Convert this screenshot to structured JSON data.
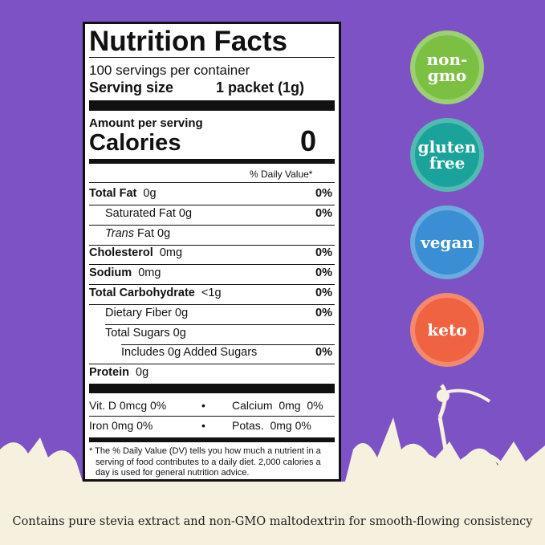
{
  "label": {
    "title": "Nutrition Facts",
    "servings": "100 servings per container",
    "serving_size_label": "Serving size",
    "serving_size_value": "1 packet (1g)",
    "amount_per_serving": "Amount per serving",
    "calories_label": "Calories",
    "calories_value": "0",
    "daily_value_header": "% Daily Value*",
    "rows": [
      {
        "name": "Total Fat",
        "amount": "0g",
        "dv": "0%"
      },
      {
        "name": "Saturated Fat 0g",
        "dv": "0%"
      },
      {
        "name_prefix": "Trans",
        "name": "Fat 0g"
      },
      {
        "name": "Cholesterol",
        "amount": "0mg",
        "dv": "0%"
      },
      {
        "name": "Sodium",
        "amount": "0mg",
        "dv": "0%"
      },
      {
        "name": "Total Carbohydrate",
        "amount": "<1g",
        "dv": "0%"
      },
      {
        "name": "Dietary Fiber 0g",
        "dv": "0%"
      },
      {
        "name": "Total Sugars 0g"
      },
      {
        "name": "Includes 0g Added Sugars",
        "dv": "0%"
      },
      {
        "name": "Protein",
        "amount": "0g"
      }
    ],
    "vitamins": [
      [
        "Vit. D 0mcg 0%",
        "Calcium  0mg  0%"
      ],
      [
        "Iron 0mg 0%",
        "Potas.  0mg 0%"
      ]
    ],
    "footnote": "* The % Daily Value (DV) tells you how much a nutrient in a serving of food contributes to a daily diet. 2,000 calories a day is used for general nutrition advice."
  },
  "badges": [
    {
      "lines": [
        "non-",
        "gmo"
      ]
    },
    {
      "lines": [
        "gluten",
        "free"
      ]
    },
    {
      "lines": [
        "vegan"
      ]
    },
    {
      "lines": [
        "keto"
      ]
    }
  ],
  "caption": "Contains pure stevia extract and non-GMO maltodextrin for smooth-flowing consistency"
}
